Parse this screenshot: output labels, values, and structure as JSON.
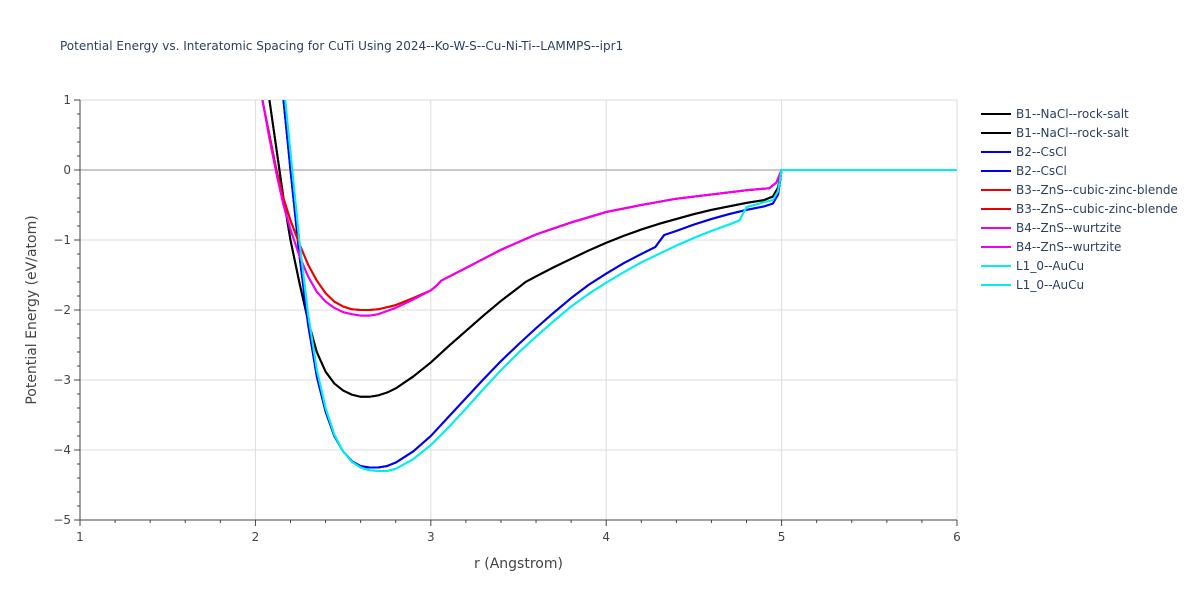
{
  "chart_data": {
    "type": "line",
    "title": "Potential Energy vs. Interatomic Spacing for CuTi Using 2024--Ko-W-S--Cu-Ni-Ti--LAMMPS--ipr1",
    "xlabel": "r (Angstrom)",
    "ylabel": "Potential Energy (eV/atom)",
    "xlim": [
      1,
      6
    ],
    "ylim": [
      -5,
      1
    ],
    "xticks": [
      1,
      2,
      3,
      4,
      5,
      6
    ],
    "yticks": [
      1,
      0,
      -1,
      -2,
      -3,
      -4,
      -5
    ],
    "ytick_labels": [
      "1",
      "0",
      "−1",
      "−2",
      "−3",
      "−4",
      "−5"
    ],
    "grid": true,
    "legend_position": "right",
    "series": [
      {
        "name": "B1--NaCl--rock-salt",
        "color": "#000000",
        "x": [
          2.08,
          2.12,
          2.16,
          2.2,
          2.25,
          2.3,
          2.35,
          2.4,
          2.45,
          2.5,
          2.55,
          2.6,
          2.65,
          2.7,
          2.75,
          2.8,
          2.9,
          3.0,
          3.1,
          3.2,
          3.3,
          3.4,
          3.5,
          3.54,
          3.6,
          3.7,
          3.8,
          3.9,
          4.0,
          4.1,
          4.2,
          4.3,
          4.4,
          4.5,
          4.6,
          4.7,
          4.8,
          4.9,
          4.95,
          4.98,
          5.0,
          5.5,
          6.0
        ],
        "y": [
          1.0,
          0.3,
          -0.4,
          -1.0,
          -1.6,
          -2.15,
          -2.6,
          -2.88,
          -3.05,
          -3.15,
          -3.21,
          -3.24,
          -3.24,
          -3.22,
          -3.18,
          -3.12,
          -2.95,
          -2.75,
          -2.52,
          -2.3,
          -2.08,
          -1.87,
          -1.68,
          -1.6,
          -1.52,
          -1.39,
          -1.27,
          -1.15,
          -1.04,
          -0.94,
          -0.85,
          -0.77,
          -0.7,
          -0.63,
          -0.57,
          -0.52,
          -0.47,
          -0.43,
          -0.38,
          -0.25,
          0.0,
          0.0,
          0.0
        ]
      },
      {
        "name": "B1--NaCl--rock-salt",
        "color": "#000000",
        "x": [
          2.08,
          2.12,
          2.16,
          2.2,
          2.25,
          2.3,
          2.35,
          2.4,
          2.45,
          2.5,
          2.55,
          2.6,
          2.65,
          2.7,
          2.75,
          2.8,
          2.9,
          3.0,
          3.1,
          3.2,
          3.3,
          3.4,
          3.5,
          3.54,
          3.6,
          3.7,
          3.8,
          3.9,
          4.0,
          4.1,
          4.2,
          4.3,
          4.4,
          4.5,
          4.6,
          4.7,
          4.8,
          4.9,
          4.95,
          4.98,
          5.0,
          5.5,
          6.0
        ],
        "y": [
          1.0,
          0.3,
          -0.4,
          -1.0,
          -1.6,
          -2.15,
          -2.6,
          -2.88,
          -3.05,
          -3.15,
          -3.21,
          -3.24,
          -3.24,
          -3.22,
          -3.18,
          -3.12,
          -2.95,
          -2.75,
          -2.52,
          -2.3,
          -2.08,
          -1.87,
          -1.68,
          -1.6,
          -1.52,
          -1.39,
          -1.27,
          -1.15,
          -1.04,
          -0.94,
          -0.85,
          -0.77,
          -0.7,
          -0.63,
          -0.57,
          -0.52,
          -0.47,
          -0.43,
          -0.38,
          -0.25,
          0.0,
          0.0,
          0.0
        ]
      },
      {
        "name": "B2--CsCl",
        "color": "#0000ee",
        "x": [
          2.16,
          2.2,
          2.25,
          2.3,
          2.35,
          2.4,
          2.45,
          2.5,
          2.55,
          2.6,
          2.65,
          2.7,
          2.75,
          2.8,
          2.9,
          3.0,
          3.1,
          3.2,
          3.3,
          3.4,
          3.5,
          3.6,
          3.7,
          3.8,
          3.9,
          4.0,
          4.1,
          4.2,
          4.28,
          4.33,
          4.4,
          4.5,
          4.6,
          4.7,
          4.8,
          4.9,
          4.95,
          4.98,
          5.0,
          5.5,
          6.0
        ],
        "y": [
          1.0,
          0.0,
          -1.2,
          -2.2,
          -2.95,
          -3.45,
          -3.8,
          -4.02,
          -4.16,
          -4.23,
          -4.25,
          -4.25,
          -4.23,
          -4.18,
          -4.02,
          -3.8,
          -3.53,
          -3.26,
          -2.99,
          -2.73,
          -2.49,
          -2.26,
          -2.04,
          -1.83,
          -1.64,
          -1.48,
          -1.33,
          -1.2,
          -1.1,
          -0.93,
          -0.87,
          -0.78,
          -0.7,
          -0.63,
          -0.57,
          -0.52,
          -0.48,
          -0.35,
          0.0,
          0.0,
          0.0
        ]
      },
      {
        "name": "B2--CsCl",
        "color": "#0000ee",
        "x": [
          2.16,
          2.2,
          2.25,
          2.3,
          2.35,
          2.4,
          2.45,
          2.5,
          2.55,
          2.6,
          2.65,
          2.7,
          2.75,
          2.8,
          2.9,
          3.0,
          3.1,
          3.2,
          3.3,
          3.4,
          3.5,
          3.6,
          3.7,
          3.8,
          3.9,
          4.0,
          4.1,
          4.2,
          4.28,
          4.33,
          4.4,
          4.5,
          4.6,
          4.7,
          4.8,
          4.9,
          4.95,
          4.98,
          5.0,
          5.5,
          6.0
        ],
        "y": [
          1.0,
          0.0,
          -1.2,
          -2.2,
          -2.95,
          -3.45,
          -3.8,
          -4.02,
          -4.16,
          -4.23,
          -4.25,
          -4.25,
          -4.23,
          -4.18,
          -4.02,
          -3.8,
          -3.53,
          -3.26,
          -2.99,
          -2.73,
          -2.49,
          -2.26,
          -2.04,
          -1.83,
          -1.64,
          -1.48,
          -1.33,
          -1.2,
          -1.1,
          -0.93,
          -0.87,
          -0.78,
          -0.7,
          -0.63,
          -0.57,
          -0.52,
          -0.48,
          -0.35,
          0.0,
          0.0,
          0.0
        ]
      },
      {
        "name": "B3--ZnS--cubic-zinc-blende",
        "color": "#ee0000",
        "x": [
          2.04,
          2.08,
          2.12,
          2.16,
          2.2,
          2.25,
          2.3,
          2.35,
          2.4,
          2.45,
          2.5,
          2.55,
          2.6,
          2.65,
          2.7,
          2.8,
          2.9,
          3.0,
          3.03,
          3.06,
          3.2,
          3.4,
          3.6,
          3.8,
          4.0,
          4.2,
          4.4,
          4.6,
          4.8,
          4.93,
          4.97,
          5.0,
          5.5,
          6.0
        ],
        "y": [
          1.0,
          0.5,
          0.0,
          -0.4,
          -0.72,
          -1.05,
          -1.35,
          -1.58,
          -1.76,
          -1.88,
          -1.95,
          -1.99,
          -2.0,
          -2.0,
          -1.99,
          -1.93,
          -1.83,
          -1.72,
          -1.66,
          -1.58,
          -1.4,
          -1.14,
          -0.92,
          -0.75,
          -0.6,
          -0.5,
          -0.41,
          -0.35,
          -0.29,
          -0.26,
          -0.18,
          0.0,
          0.0,
          0.0
        ]
      },
      {
        "name": "B3--ZnS--cubic-zinc-blende",
        "color": "#ee0000",
        "x": [
          2.04,
          2.08,
          2.12,
          2.16,
          2.2,
          2.25,
          2.3,
          2.35,
          2.4,
          2.45,
          2.5,
          2.55,
          2.6,
          2.65,
          2.7,
          2.8,
          2.9,
          3.0,
          3.03,
          3.06,
          3.2,
          3.4,
          3.6,
          3.8,
          4.0,
          4.2,
          4.4,
          4.6,
          4.8,
          4.93,
          4.97,
          5.0,
          5.5,
          6.0
        ],
        "y": [
          1.0,
          0.5,
          0.0,
          -0.4,
          -0.72,
          -1.05,
          -1.35,
          -1.58,
          -1.76,
          -1.88,
          -1.95,
          -1.99,
          -2.0,
          -2.0,
          -1.99,
          -1.93,
          -1.83,
          -1.72,
          -1.66,
          -1.58,
          -1.4,
          -1.14,
          -0.92,
          -0.75,
          -0.6,
          -0.5,
          -0.41,
          -0.35,
          -0.29,
          -0.26,
          -0.18,
          0.0,
          0.0,
          0.0
        ]
      },
      {
        "name": "B4--ZnS--wurtzite",
        "color": "#ee00ee",
        "x": [
          2.04,
          2.08,
          2.12,
          2.16,
          2.2,
          2.25,
          2.3,
          2.35,
          2.4,
          2.45,
          2.5,
          2.55,
          2.6,
          2.65,
          2.7,
          2.8,
          2.9,
          3.0,
          3.03,
          3.06,
          3.2,
          3.4,
          3.6,
          3.8,
          4.0,
          4.2,
          4.4,
          4.6,
          4.8,
          4.93,
          4.97,
          5.0,
          5.5,
          6.0
        ],
        "y": [
          1.0,
          0.45,
          -0.05,
          -0.5,
          -0.85,
          -1.22,
          -1.52,
          -1.74,
          -1.88,
          -1.97,
          -2.03,
          -2.06,
          -2.08,
          -2.08,
          -2.06,
          -1.97,
          -1.85,
          -1.72,
          -1.66,
          -1.58,
          -1.4,
          -1.14,
          -0.92,
          -0.75,
          -0.6,
          -0.5,
          -0.41,
          -0.35,
          -0.29,
          -0.26,
          -0.18,
          0.0,
          0.0,
          0.0
        ]
      },
      {
        "name": "B4--ZnS--wurtzite",
        "color": "#ee00ee",
        "x": [
          2.04,
          2.08,
          2.12,
          2.16,
          2.2,
          2.25,
          2.3,
          2.35,
          2.4,
          2.45,
          2.5,
          2.55,
          2.6,
          2.65,
          2.7,
          2.8,
          2.9,
          3.0,
          3.03,
          3.06,
          3.2,
          3.4,
          3.6,
          3.8,
          4.0,
          4.2,
          4.4,
          4.6,
          4.8,
          4.93,
          4.97,
          5.0,
          5.5,
          6.0
        ],
        "y": [
          1.0,
          0.45,
          -0.05,
          -0.5,
          -0.85,
          -1.22,
          -1.52,
          -1.74,
          -1.88,
          -1.97,
          -2.03,
          -2.06,
          -2.08,
          -2.08,
          -2.06,
          -1.97,
          -1.85,
          -1.72,
          -1.66,
          -1.58,
          -1.4,
          -1.14,
          -0.92,
          -0.75,
          -0.6,
          -0.5,
          -0.41,
          -0.35,
          -0.29,
          -0.26,
          -0.18,
          0.0,
          0.0,
          0.0
        ]
      },
      {
        "name": "L1_0--AuCu",
        "color": "#00eeee",
        "x": [
          2.17,
          2.21,
          2.25,
          2.3,
          2.35,
          2.4,
          2.45,
          2.5,
          2.55,
          2.6,
          2.65,
          2.7,
          2.75,
          2.8,
          2.9,
          3.0,
          3.1,
          3.2,
          3.3,
          3.4,
          3.5,
          3.6,
          3.7,
          3.8,
          3.9,
          4.0,
          4.1,
          4.2,
          4.3,
          4.4,
          4.5,
          4.6,
          4.7,
          4.76,
          4.8,
          4.9,
          4.95,
          4.98,
          5.0,
          5.5,
          6.0
        ],
        "y": [
          1.0,
          0.0,
          -1.0,
          -2.05,
          -2.85,
          -3.4,
          -3.78,
          -4.02,
          -4.17,
          -4.25,
          -4.29,
          -4.3,
          -4.3,
          -4.27,
          -4.13,
          -3.93,
          -3.68,
          -3.41,
          -3.13,
          -2.86,
          -2.61,
          -2.38,
          -2.16,
          -1.95,
          -1.77,
          -1.61,
          -1.46,
          -1.32,
          -1.2,
          -1.08,
          -0.97,
          -0.87,
          -0.78,
          -0.72,
          -0.53,
          -0.46,
          -0.43,
          -0.3,
          0.0,
          0.0,
          0.0
        ]
      },
      {
        "name": "L1_0--AuCu",
        "color": "#00eeee",
        "x": [
          2.17,
          2.21,
          2.25,
          2.3,
          2.35,
          2.4,
          2.45,
          2.5,
          2.55,
          2.6,
          2.65,
          2.7,
          2.75,
          2.8,
          2.9,
          3.0,
          3.1,
          3.2,
          3.3,
          3.4,
          3.5,
          3.6,
          3.7,
          3.8,
          3.9,
          4.0,
          4.1,
          4.2,
          4.3,
          4.4,
          4.5,
          4.6,
          4.7,
          4.76,
          4.8,
          4.9,
          4.95,
          4.98,
          5.0,
          5.5,
          6.0
        ],
        "y": [
          1.0,
          0.0,
          -1.0,
          -2.05,
          -2.85,
          -3.4,
          -3.78,
          -4.02,
          -4.17,
          -4.25,
          -4.29,
          -4.3,
          -4.3,
          -4.27,
          -4.13,
          -3.93,
          -3.68,
          -3.41,
          -3.13,
          -2.86,
          -2.61,
          -2.38,
          -2.16,
          -1.95,
          -1.77,
          -1.61,
          -1.46,
          -1.32,
          -1.2,
          -1.08,
          -0.97,
          -0.87,
          -0.78,
          -0.72,
          -0.53,
          -0.46,
          -0.43,
          -0.3,
          0.0,
          0.0,
          0.0
        ]
      }
    ]
  }
}
